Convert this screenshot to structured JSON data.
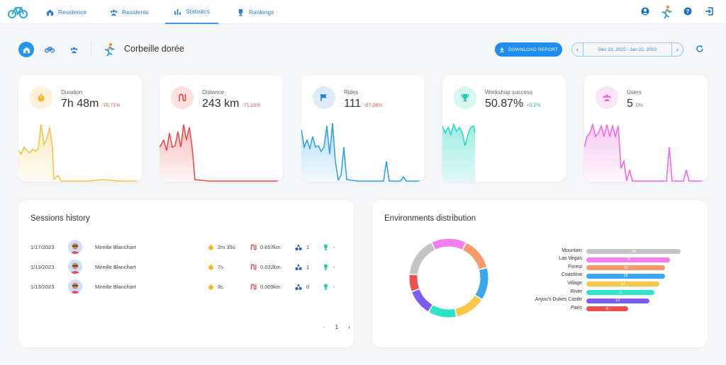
{
  "nav": {
    "items": [
      {
        "label": "Residence",
        "icon": "home-icon"
      },
      {
        "label": "Residents",
        "icon": "people-icon"
      },
      {
        "label": "Statistics",
        "icon": "bar-chart-icon"
      },
      {
        "label": "Rankings",
        "icon": "trophy-icon"
      }
    ],
    "active": "Statistics"
  },
  "toolbar": {
    "user_name": "Corbeille dorée",
    "download_label": "DOWNLOAD REPORT",
    "date_range": "Dec 23, 2022 - Jan 22, 2023"
  },
  "stats": [
    {
      "label": "Duration",
      "value": "7h 48m",
      "change": "-70.71%",
      "color": "#f5c043",
      "change_color": "#e85a5a"
    },
    {
      "label": "Distance",
      "value": "243 km",
      "change": "-71.16%",
      "color": "#ee4444",
      "change_color": "#e85a5a"
    },
    {
      "label": "Rides",
      "value": "111",
      "change": "-67.06%",
      "color": "#2d9de8",
      "change_color": "#e85a5a"
    },
    {
      "label": "Workshop success",
      "value": "50.87%",
      "change": "+0.1%",
      "color": "#26d9c0",
      "change_color": "#26c0a8"
    },
    {
      "label": "Users",
      "value": "5",
      "change": "0%",
      "color": "#ee66e0",
      "change_color": "#888888"
    }
  ],
  "sessions": {
    "title": "Sessions history",
    "rows": [
      {
        "date": "1/17/2023",
        "name": "Mireille Blanchart",
        "duration": "2m 35s",
        "distance": "0.657km",
        "count": "1",
        "success": "-"
      },
      {
        "date": "1/13/2023",
        "name": "Mireille Blanchart",
        "duration": "7s",
        "distance": "0.032km",
        "count": "1",
        "success": "-"
      },
      {
        "date": "1/13/2023",
        "name": "Mireille Blanchart",
        "duration": "3s",
        "distance": "0.009km",
        "count": "0",
        "success": "-"
      }
    ],
    "page": "1"
  },
  "environments": {
    "title": "Environments distribution",
    "items": [
      {
        "label": "Mountain",
        "value": "18",
        "color": "#c4c4c4"
      },
      {
        "label": "Las Vegas",
        "value": "16",
        "color": "#f27ef0"
      },
      {
        "label": "Forest",
        "value": "15",
        "color": "#f79a6b"
      },
      {
        "label": "Coastline",
        "value": "15",
        "color": "#3ba7ef"
      },
      {
        "label": "Village",
        "value": "14",
        "color": "#f7c84a"
      },
      {
        "label": "River",
        "value": "13",
        "color": "#2de3c8"
      },
      {
        "label": "Anjou's Dukes Castle",
        "value": "12",
        "color": "#7a5cf0"
      },
      {
        "label": "Paris",
        "value": "8",
        "color": "#f05050"
      }
    ]
  }
}
